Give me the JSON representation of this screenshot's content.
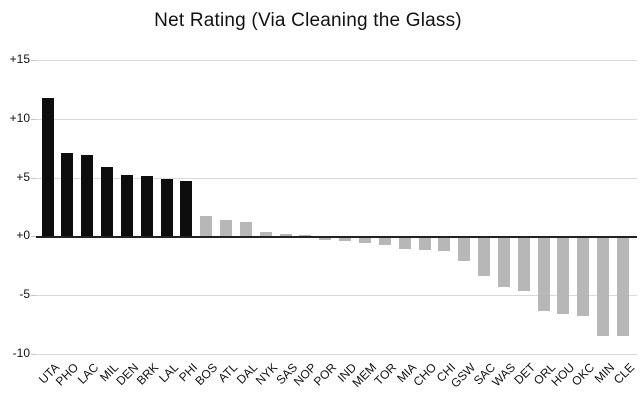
{
  "title": "Net Rating (Via Cleaning the Glass)",
  "chart_data": {
    "type": "bar",
    "title": "Net Rating (Via Cleaning the Glass)",
    "xlabel": "",
    "ylabel": "",
    "categories": [
      "UTA",
      "PHO",
      "LAC",
      "MIL",
      "DEN",
      "BRK",
      "LAL",
      "PHI",
      "BOS",
      "ATL",
      "DAL",
      "NYK",
      "SAS",
      "NOP",
      "POR",
      "IND",
      "MEM",
      "TOR",
      "MIA",
      "CHO",
      "CHI",
      "GSW",
      "SAC",
      "WAS",
      "DET",
      "ORL",
      "HOU",
      "OKC",
      "MIN",
      "CLE"
    ],
    "values": [
      11.8,
      7.1,
      6.9,
      5.9,
      5.2,
      5.1,
      4.9,
      4.7,
      1.7,
      1.4,
      1.2,
      0.4,
      0.2,
      0.1,
      -0.3,
      -0.4,
      -0.6,
      -0.8,
      -1.1,
      -1.2,
      -1.3,
      -2.1,
      -3.4,
      -4.3,
      -4.7,
      -6.4,
      -6.6,
      -6.8,
      -8.5,
      -8.5
    ],
    "highlight_count": 8,
    "highlight_color": "#0d0d0d",
    "default_color": "#b7b7b7",
    "ylim": [
      -10,
      15
    ],
    "yticks": [
      15,
      10,
      5,
      0,
      -5,
      -10
    ],
    "ytick_labels": [
      "+15",
      "+10",
      "+5",
      "+0",
      "-5",
      "-10"
    ],
    "grid": true,
    "gridline_color": "#d9d9d9",
    "tick_mark_color": "#c7c7c7",
    "zero_line_color": "#222222",
    "legend": "none",
    "sorted": "descending"
  }
}
